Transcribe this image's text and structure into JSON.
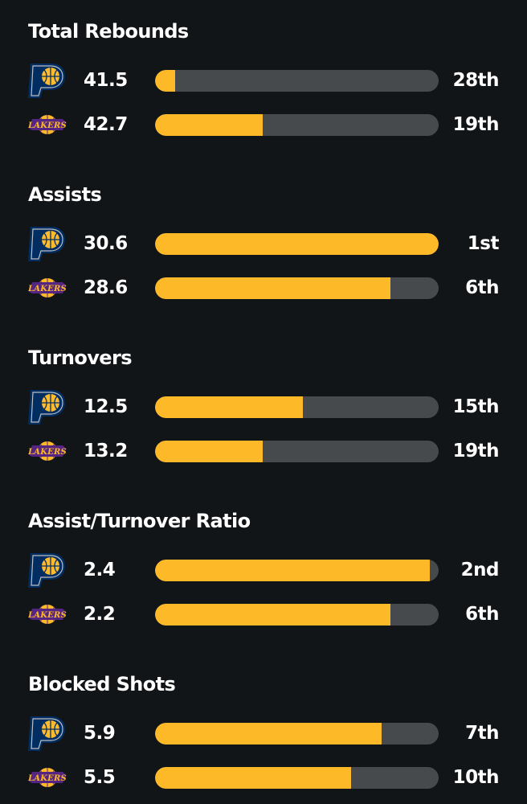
{
  "colors": {
    "background": "#121518",
    "bar_fill": "#fdb927",
    "bar_track": "#474a4d",
    "text": "#ffffff",
    "pacers_navy": "#002d62",
    "pacers_gold": "#fdbb30",
    "lakers_purple": "#552583",
    "lakers_gold": "#fdb927"
  },
  "sections": [
    {
      "title": "Total Rebounds",
      "rows": [
        {
          "team_logo": "pacers-logo-icon",
          "value": "41.5",
          "rank": "28th",
          "fill_fraction": 0.07
        },
        {
          "team_logo": "lakers-logo-icon",
          "value": "42.7",
          "rank": "19th",
          "fill_fraction": 0.38
        }
      ]
    },
    {
      "title": "Assists",
      "rows": [
        {
          "team_logo": "pacers-logo-icon",
          "value": "30.6",
          "rank": "1st",
          "fill_fraction": 1.0
        },
        {
          "team_logo": "lakers-logo-icon",
          "value": "28.6",
          "rank": "6th",
          "fill_fraction": 0.83
        }
      ]
    },
    {
      "title": "Turnovers",
      "rows": [
        {
          "team_logo": "pacers-logo-icon",
          "value": "12.5",
          "rank": "15th",
          "fill_fraction": 0.52
        },
        {
          "team_logo": "lakers-logo-icon",
          "value": "13.2",
          "rank": "19th",
          "fill_fraction": 0.38
        }
      ]
    },
    {
      "title": "Assist/Turnover Ratio",
      "rows": [
        {
          "team_logo": "pacers-logo-icon",
          "value": "2.4",
          "rank": "2nd",
          "fill_fraction": 0.97
        },
        {
          "team_logo": "lakers-logo-icon",
          "value": "2.2",
          "rank": "6th",
          "fill_fraction": 0.83
        }
      ]
    },
    {
      "title": "Blocked Shots",
      "rows": [
        {
          "team_logo": "pacers-logo-icon",
          "value": "5.9",
          "rank": "7th",
          "fill_fraction": 0.8
        },
        {
          "team_logo": "lakers-logo-icon",
          "value": "5.5",
          "rank": "10th",
          "fill_fraction": 0.69
        }
      ]
    }
  ]
}
